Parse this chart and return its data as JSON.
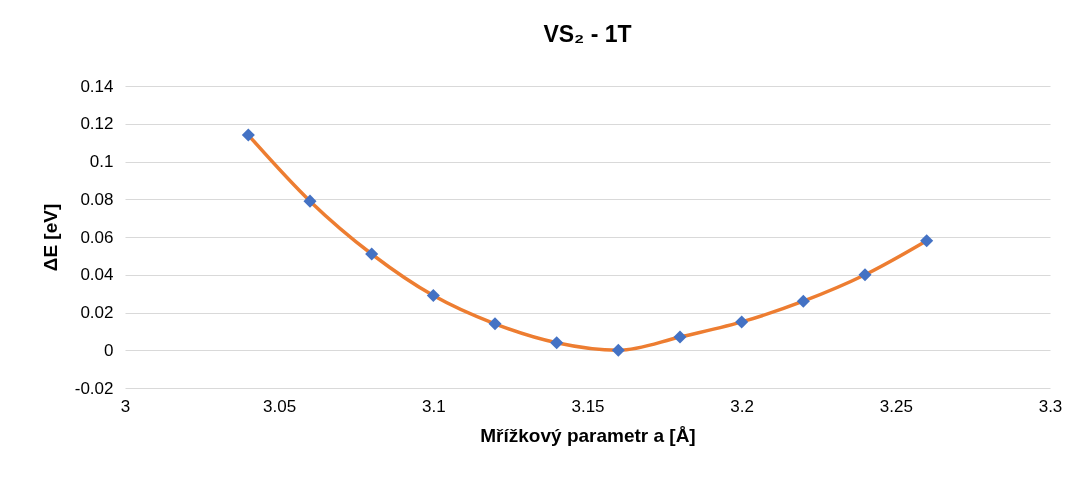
{
  "chart_data": {
    "type": "line",
    "title": "VS₂ - 1T",
    "xlabel": "Mřížkový parametr a [Å]",
    "ylabel": "ΔE [eV]",
    "x": [
      3.04,
      3.06,
      3.08,
      3.1,
      3.12,
      3.14,
      3.16,
      3.18,
      3.2,
      3.22,
      3.24,
      3.26
    ],
    "series": [
      {
        "color": "#ed7d31",
        "colors": [
          "#4472c4",
          "#4472c4",
          "#4472c4",
          "#4472c4",
          "#4472c4",
          "#4472c4",
          "#4472c4",
          "#4472c4",
          "#4472c4",
          "#4472c4",
          "#4472c4",
          "#4472c4"
        ],
        "values": [
          0.114,
          0.079,
          0.051,
          0.029,
          0.014,
          0.004,
          0,
          0.007,
          0.015,
          0.026,
          0.04,
          0.058
        ]
      }
    ],
    "xlim": [
      3,
      3.3
    ],
    "xticks": [
      3,
      3.05,
      3.1,
      3.15,
      3.2,
      3.25,
      3.3
    ],
    "ylim": [
      -0.02,
      0.14
    ],
    "yticks": [
      -0.02,
      0,
      0.02,
      0.04,
      0.06,
      0.08,
      0.1,
      0.12,
      0.14
    ],
    "grid": "y",
    "marker": "diamond",
    "line_style": "solid"
  }
}
